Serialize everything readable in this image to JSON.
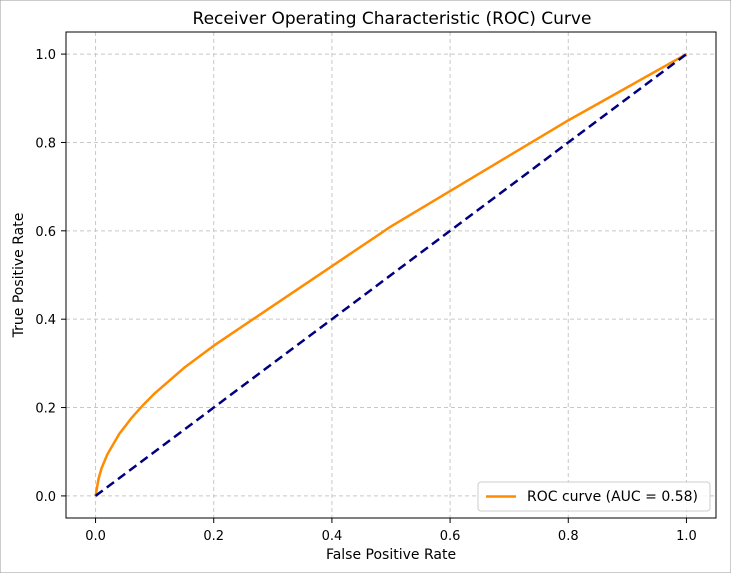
{
  "chart_data": {
    "type": "line",
    "title": "Receiver Operating Characteristic (ROC) Curve",
    "xlabel": "False Positive Rate",
    "ylabel": "True Positive Rate",
    "xlim": [
      -0.05,
      1.05
    ],
    "ylim": [
      -0.05,
      1.05
    ],
    "xticks": [
      "0.0",
      "0.2",
      "0.4",
      "0.6",
      "0.8",
      "1.0"
    ],
    "yticks": [
      "0.0",
      "0.2",
      "0.4",
      "0.6",
      "0.8",
      "1.0"
    ],
    "grid": true,
    "legend_position": "lower-right",
    "series": [
      {
        "name": "ROC curve (AUC = 0.58)",
        "color": "#ff8c00",
        "style": "solid",
        "x": [
          0.0,
          0.005,
          0.01,
          0.02,
          0.04,
          0.06,
          0.08,
          0.1,
          0.15,
          0.2,
          0.3,
          0.4,
          0.5,
          0.6,
          0.7,
          0.8,
          0.9,
          1.0
        ],
        "y": [
          0.0,
          0.038,
          0.062,
          0.094,
          0.14,
          0.175,
          0.205,
          0.232,
          0.29,
          0.34,
          0.43,
          0.52,
          0.61,
          0.69,
          0.77,
          0.85,
          0.925,
          1.0
        ]
      },
      {
        "color": "#000080",
        "style": "dashed",
        "x": [
          0.0,
          1.0
        ],
        "y": [
          0.0,
          1.0
        ]
      }
    ]
  }
}
